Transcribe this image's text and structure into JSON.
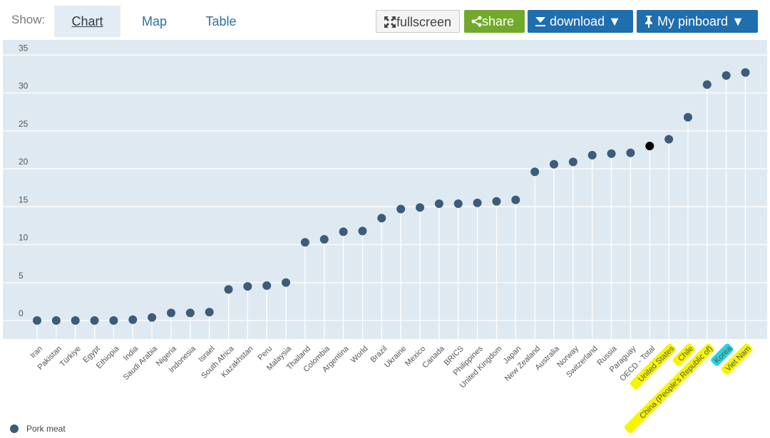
{
  "toolbar": {
    "show_label": "Show:",
    "tabs": [
      {
        "label": "Chart",
        "active": true
      },
      {
        "label": "Map",
        "active": false
      },
      {
        "label": "Table",
        "active": false
      }
    ],
    "fullscreen_label": "fullscreen",
    "share_label": "share",
    "download_label": "download",
    "pinboard_label": "My pinboard"
  },
  "colors": {
    "plot_bg": "#dfe9f1",
    "point": "#3d5b7a",
    "highlight_point": "#000000",
    "highlight_yellow": "#f5f500",
    "highlight_cyan": "#27d3e0",
    "share_green": "#71a92b",
    "button_blue": "#1f6eae"
  },
  "chart_data": {
    "type": "scatter",
    "style": "lollipop",
    "categories": [
      "Iran",
      "Pakistan",
      "Türkiye",
      "Egypt",
      "Ethiopia",
      "India",
      "Saudi Arabia",
      "Nigeria",
      "Indonesia",
      "Israel",
      "South Africa",
      "Kazakhstan",
      "Peru",
      "Malaysia",
      "Thailand",
      "Colombia",
      "Argentina",
      "World",
      "Brazil",
      "Ukraine",
      "Mexico",
      "Canada",
      "BRICS",
      "Philippines",
      "United Kingdom",
      "Japan",
      "New Zealand",
      "Australia",
      "Norway",
      "Switzerland",
      "Russia",
      "Paraguay",
      "OECD - Total",
      "United States",
      "Chile",
      "China (People's Republic of)",
      "Korea",
      "Viet Nam"
    ],
    "series": [
      {
        "name": "Pork meat",
        "values": [
          0.0,
          0.0,
          0.0,
          0.0,
          0.0,
          0.1,
          0.4,
          1.0,
          1.0,
          1.1,
          4.1,
          4.5,
          4.6,
          5.0,
          10.3,
          10.7,
          11.7,
          11.8,
          13.5,
          14.7,
          14.9,
          15.4,
          15.4,
          15.5,
          15.7,
          15.9,
          19.6,
          20.6,
          20.9,
          21.8,
          22.0,
          22.1,
          23.0,
          23.9,
          26.8,
          31.1,
          32.3,
          32.7
        ]
      }
    ],
    "highlighted_point": "OECD - Total",
    "highlighted_labels": {
      "United States": "yellow",
      "Chile": "yellow",
      "China (People's Republic of)": "yellow",
      "Korea": "cyan",
      "Viet Nam": "yellow"
    },
    "ylim": [
      -3,
      36
    ],
    "yticks": [
      0,
      5,
      10,
      15,
      20,
      25,
      30,
      35
    ],
    "grid": true,
    "legend_position": "bottom-left",
    "xlabel": "",
    "ylabel": "",
    "title": ""
  }
}
